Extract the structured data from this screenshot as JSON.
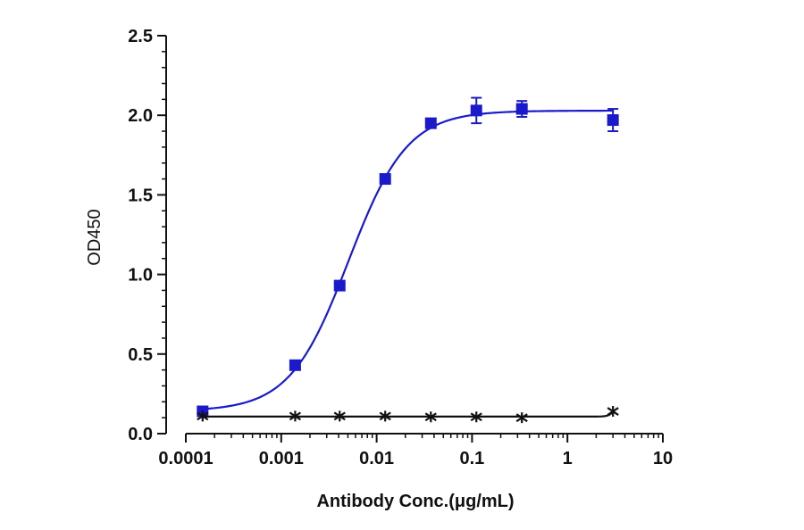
{
  "chart_data": {
    "type": "scatter",
    "title": "",
    "xlabel": "Antibody Conc.(μg/mL)",
    "ylabel": "OD450",
    "x_scale": "log",
    "xlim": [
      0.0001,
      10
    ],
    "ylim": [
      0,
      2.5
    ],
    "x_ticks": [
      "0.0001",
      "0.001",
      "0.01",
      "0.1",
      "1",
      "10"
    ],
    "y_ticks": [
      "0.0",
      "0.5",
      "1.0",
      "1.5",
      "2.0",
      "2.5"
    ],
    "grid": false,
    "legend": "none",
    "series": [
      {
        "color": "#1a1acc",
        "marker": "square",
        "fit": "four-parameter-logistic",
        "x": [
          0.00015,
          0.0014,
          0.0041,
          0.0123,
          0.037,
          0.111,
          0.333,
          3.0
        ],
        "y": [
          0.14,
          0.43,
          0.93,
          1.6,
          1.95,
          2.03,
          2.04,
          1.97
        ],
        "error": [
          0.01,
          0.02,
          0.02,
          0.02,
          0.02,
          0.08,
          0.05,
          0.07
        ]
      },
      {
        "color": "#111111",
        "marker": "x",
        "fit": "four-parameter-logistic",
        "x": [
          0.00015,
          0.0014,
          0.0041,
          0.0123,
          0.037,
          0.111,
          0.333,
          3.0
        ],
        "y": [
          0.11,
          0.11,
          0.11,
          0.11,
          0.105,
          0.105,
          0.1,
          0.14
        ],
        "error": [
          0,
          0,
          0,
          0,
          0,
          0,
          0,
          0
        ]
      }
    ]
  }
}
